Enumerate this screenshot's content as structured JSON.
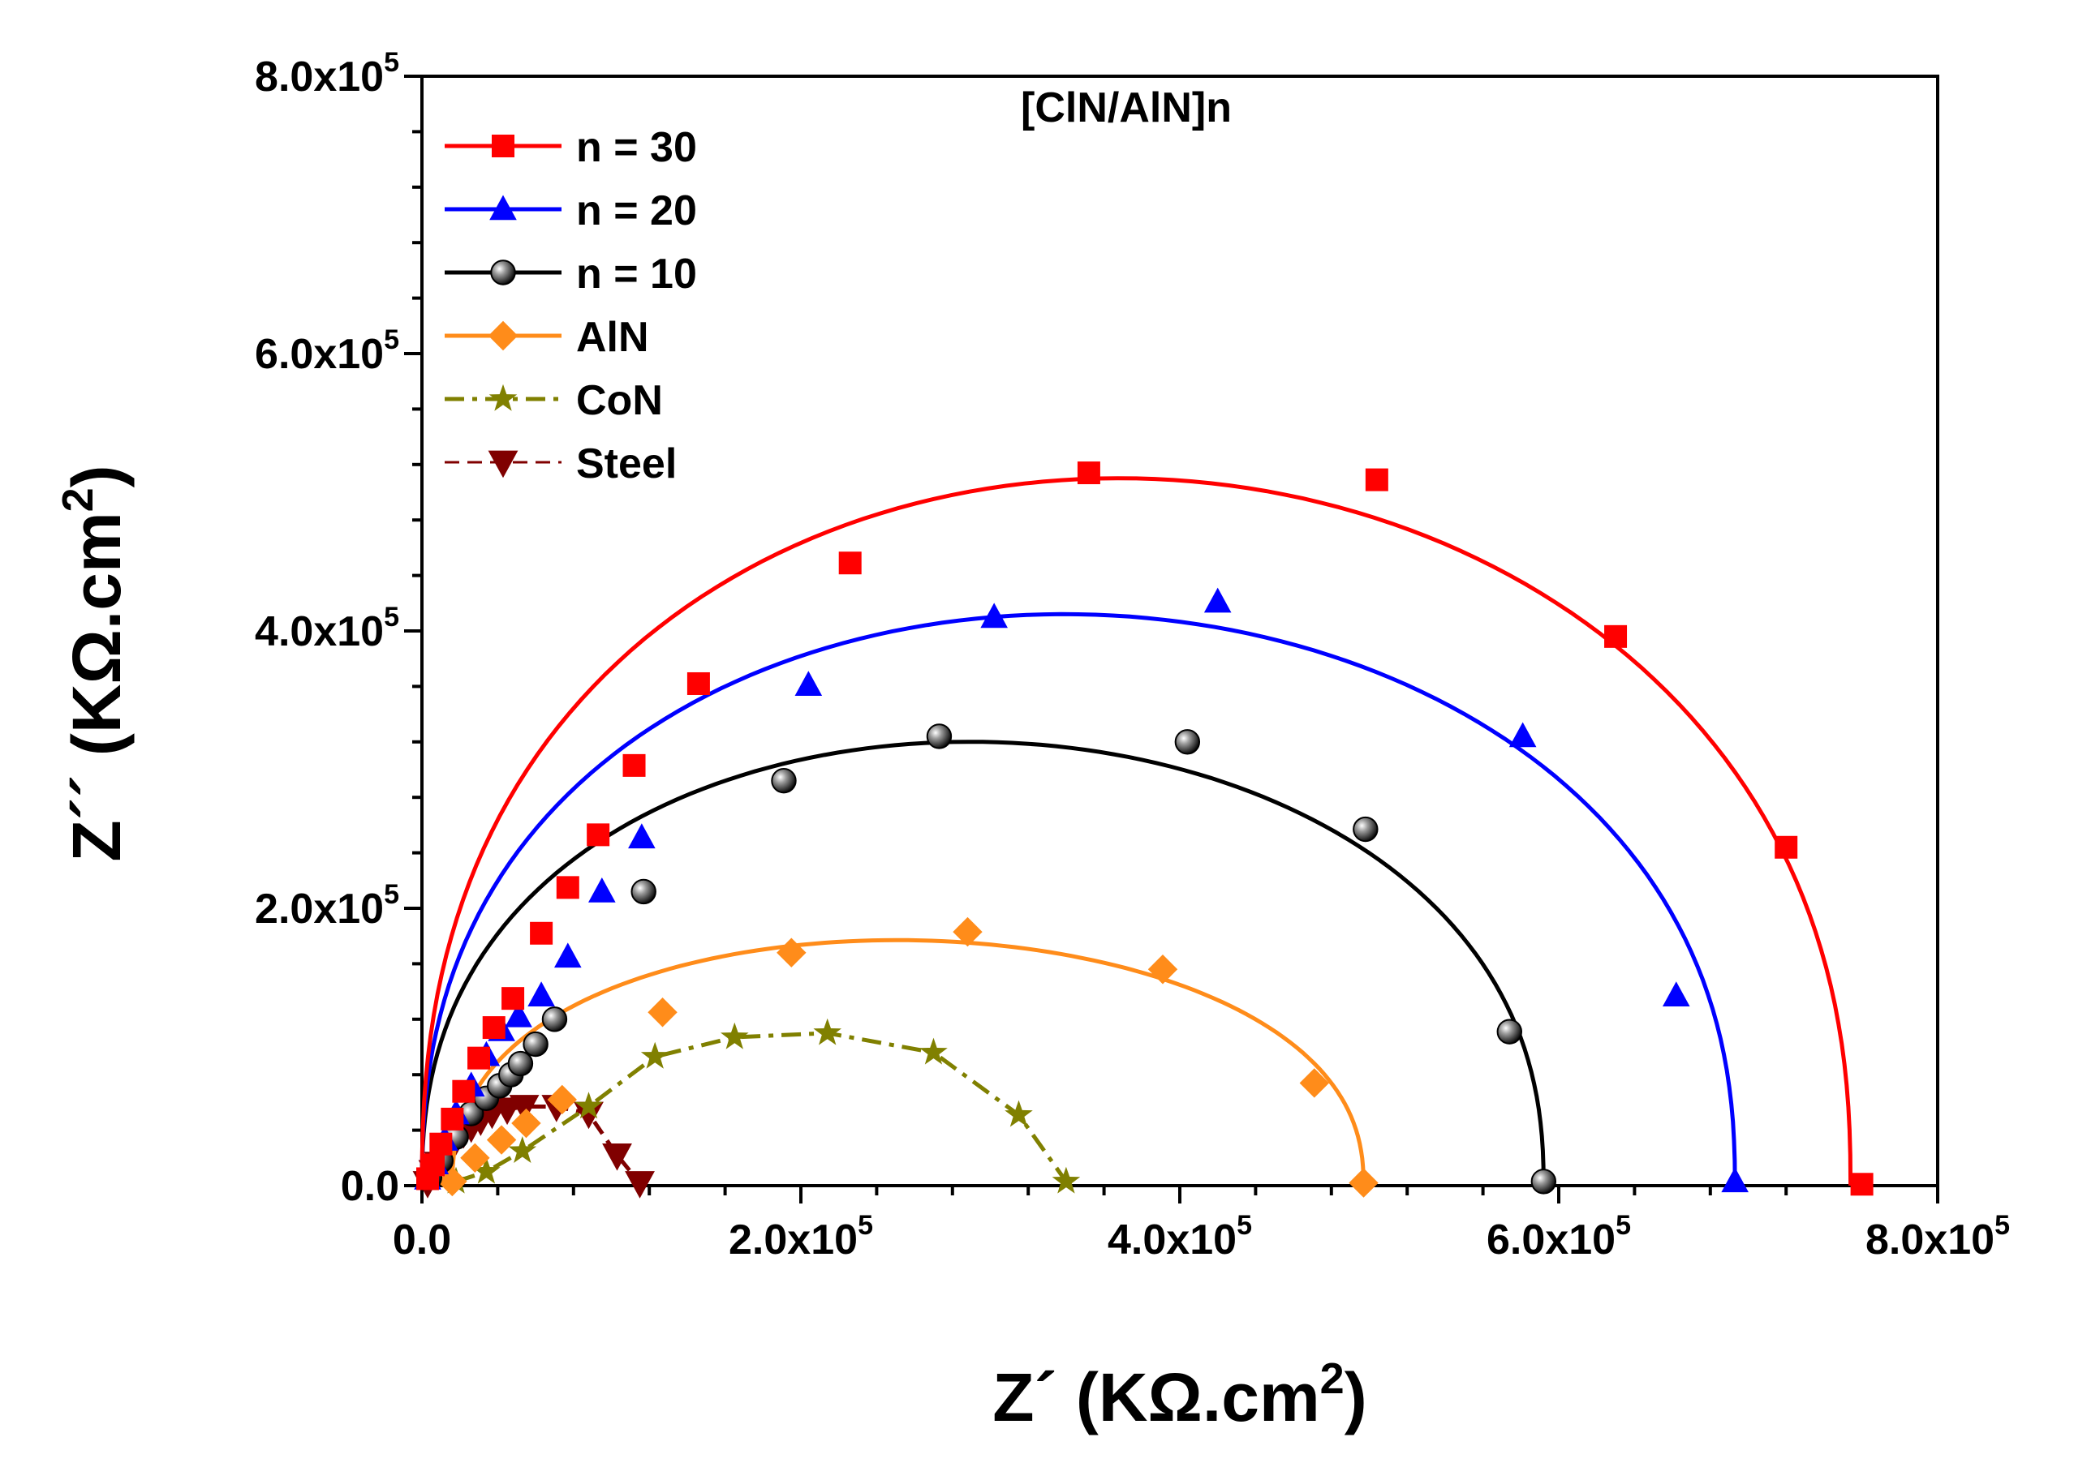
{
  "chart_data": {
    "type": "scatter",
    "title": "",
    "annotation": "[ClN/AlN]n",
    "xlabel": {
      "main": "Z´ (KΩ.cm",
      "sup": "2",
      "end": ")"
    },
    "ylabel": {
      "main": "Z´´ (KΩ.cm",
      "sup": "2",
      "end": ")"
    },
    "xlim": [
      0,
      800000
    ],
    "ylim": [
      0,
      800000
    ],
    "x_ticks": [
      {
        "value": 0,
        "mantissa": "0.0",
        "exp": ""
      },
      {
        "value": 200000,
        "mantissa": "2.0x10",
        "exp": "5"
      },
      {
        "value": 400000,
        "mantissa": "4.0x10",
        "exp": "5"
      },
      {
        "value": 600000,
        "mantissa": "6.0x10",
        "exp": "5"
      },
      {
        "value": 800000,
        "mantissa": "8.0x10",
        "exp": "5"
      }
    ],
    "y_ticks": [
      {
        "value": 0,
        "mantissa": "0.0",
        "exp": ""
      },
      {
        "value": 200000,
        "mantissa": "2.0x10",
        "exp": "5"
      },
      {
        "value": 400000,
        "mantissa": "4.0x10",
        "exp": "5"
      },
      {
        "value": 600000,
        "mantissa": "6.0x10",
        "exp": "5"
      },
      {
        "value": 800000,
        "mantissa": "8.0x10",
        "exp": "5"
      }
    ],
    "legend_position": "top-left",
    "series": [
      {
        "name": "n = 30",
        "color": "#ff0000",
        "marker": "square",
        "line": "solid",
        "fit": {
          "R": 754000,
          "Hmax": 510000,
          "depression": 0.55
        },
        "points": [
          [
            3000,
            5000
          ],
          [
            6000,
            15000
          ],
          [
            10000,
            30000
          ],
          [
            16000,
            48000
          ],
          [
            22000,
            68000
          ],
          [
            30000,
            92000
          ],
          [
            38000,
            114000
          ],
          [
            48000,
            135000
          ],
          [
            63000,
            182000
          ],
          [
            77000,
            215000
          ],
          [
            93000,
            253000
          ],
          [
            112000,
            303000
          ],
          [
            146000,
            362000
          ],
          [
            226000,
            449000
          ],
          [
            352000,
            514000
          ],
          [
            504000,
            509000
          ],
          [
            630000,
            396000
          ],
          [
            720000,
            244000
          ],
          [
            760000,
            1000
          ]
        ]
      },
      {
        "name": "n = 20",
        "color": "#0000ff",
        "marker": "triangle-up",
        "line": "solid",
        "fit": {
          "R": 693000,
          "Hmax": 412000,
          "depression": 0.48
        },
        "points": [
          [
            3000,
            5000
          ],
          [
            7000,
            16000
          ],
          [
            12000,
            33000
          ],
          [
            18000,
            52000
          ],
          [
            26000,
            72000
          ],
          [
            34000,
            94000
          ],
          [
            42000,
            112000
          ],
          [
            51000,
            122000
          ],
          [
            63000,
            137000
          ],
          [
            77000,
            165000
          ],
          [
            95000,
            212000
          ],
          [
            116000,
            251000
          ],
          [
            204000,
            361000
          ],
          [
            302000,
            410000
          ],
          [
            420000,
            421000
          ],
          [
            581000,
            324000
          ],
          [
            662000,
            137000
          ],
          [
            693000,
            3000
          ]
        ]
      },
      {
        "name": "n = 10",
        "color": "#000000",
        "marker": "sphere",
        "line": "solid",
        "fit": {
          "R": 592000,
          "Hmax": 320000,
          "depression": 0.5
        },
        "points": [
          [
            4000,
            6000
          ],
          [
            10000,
            18000
          ],
          [
            18000,
            35000
          ],
          [
            26000,
            52000
          ],
          [
            34000,
            63000
          ],
          [
            41000,
            72000
          ],
          [
            47000,
            80000
          ],
          [
            52000,
            88000
          ],
          [
            60000,
            102000
          ],
          [
            70000,
            120000
          ],
          [
            117000,
            212000
          ],
          [
            191000,
            292000
          ],
          [
            273000,
            324000
          ],
          [
            404000,
            320000
          ],
          [
            498000,
            257000
          ],
          [
            574000,
            111000
          ],
          [
            592000,
            3000
          ]
        ]
      },
      {
        "name": "AlN",
        "color": "#ff8c1a",
        "marker": "diamond",
        "line": "solid",
        "fit": {
          "R": 481000,
          "Hmax": 177000,
          "depression": 0.55,
          "x0": 16000
        },
        "points": [
          [
            16000,
            3000
          ],
          [
            28000,
            20000
          ],
          [
            42000,
            33000
          ],
          [
            55000,
            45000
          ],
          [
            74000,
            62000
          ],
          [
            127000,
            125000
          ],
          [
            195000,
            168000
          ],
          [
            288000,
            183000
          ],
          [
            391000,
            156000
          ],
          [
            471000,
            74000
          ],
          [
            497000,
            2000
          ]
        ]
      },
      {
        "name": "CoN",
        "color": "#808000",
        "marker": "star",
        "line": "dash-dot",
        "points": [
          [
            18000,
            3000
          ],
          [
            34000,
            10000
          ],
          [
            53000,
            25000
          ],
          [
            88000,
            57000
          ],
          [
            123000,
            93000
          ],
          [
            165000,
            107000
          ],
          [
            214000,
            110000
          ],
          [
            270000,
            96000
          ],
          [
            315000,
            51000
          ],
          [
            340000,
            3000
          ]
        ]
      },
      {
        "name": "Steel",
        "color": "#800000",
        "marker": "triangle-down",
        "line": "dash",
        "points": [
          [
            3000,
            2000
          ],
          [
            6000,
            10000
          ],
          [
            9000,
            16000
          ],
          [
            12000,
            22000
          ],
          [
            15000,
            28000
          ],
          [
            18000,
            33000
          ],
          [
            22000,
            38000
          ],
          [
            26000,
            42000
          ],
          [
            31000,
            47000
          ],
          [
            37000,
            52000
          ],
          [
            45000,
            55000
          ],
          [
            54000,
            57000
          ],
          [
            71000,
            57000
          ],
          [
            88000,
            52000
          ],
          [
            103000,
            22000
          ],
          [
            115000,
            2000
          ]
        ]
      }
    ]
  }
}
